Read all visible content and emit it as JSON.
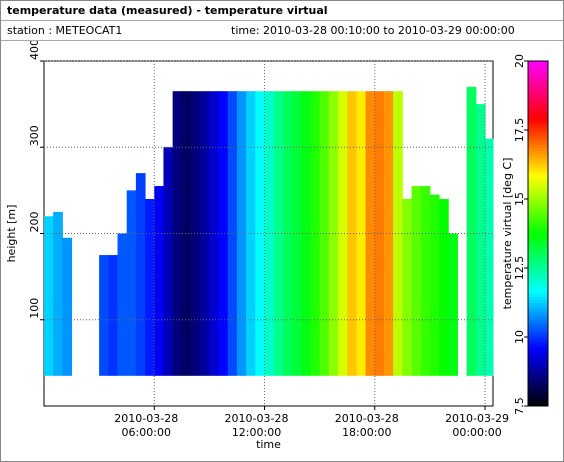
{
  "header": {
    "title": "temperature data (measured) - temperature virtual",
    "station": "station : METEOCAT1",
    "time": "time: 2010-03-28 00:10:00 to 2010-03-29 00:00:00"
  },
  "chart_data": {
    "type": "heatmap",
    "xlabel": "time",
    "ylabel": "height [m]",
    "zlabel": "temperature virtual [deg C]",
    "xlim": [
      "2010-03-28T00:00:00",
      "2010-03-29T00:26:00"
    ],
    "xticks": [
      {
        "value": "2010-03-28T06:00:00",
        "label": [
          "2010-03-28",
          "06:00:00"
        ]
      },
      {
        "value": "2010-03-28T12:00:00",
        "label": [
          "2010-03-28",
          "12:00:00"
        ]
      },
      {
        "value": "2010-03-28T18:00:00",
        "label": [
          "2010-03-28",
          "18:00:00"
        ]
      },
      {
        "value": "2010-03-29T00:00:00",
        "label": [
          "2010-03-29",
          "00:00:00"
        ]
      }
    ],
    "ylim": [
      0,
      400
    ],
    "yticks": [
      100,
      200,
      300,
      400
    ],
    "zlim": [
      7.5,
      20
    ],
    "zticks": [
      7.5,
      10,
      12.5,
      15,
      17.5,
      20
    ],
    "colormap": [
      "#000000",
      "#0000ff",
      "#00ffff",
      "#00ff00",
      "#ffff00",
      "#ff0000",
      "#ff00ff"
    ],
    "grid": true,
    "bottom": 35,
    "x": [
      "2010-03-28T00:00:00",
      "2010-03-28T00:30:00",
      "2010-03-28T01:00:00",
      "2010-03-28T01:30:00",
      "2010-03-28T02:00:00",
      "2010-03-28T02:30:00",
      "2010-03-28T03:00:00",
      "2010-03-28T03:30:00",
      "2010-03-28T04:00:00",
      "2010-03-28T04:30:00",
      "2010-03-28T05:00:00",
      "2010-03-28T05:30:00",
      "2010-03-28T06:00:00",
      "2010-03-28T06:30:00",
      "2010-03-28T07:00:00",
      "2010-03-28T07:30:00",
      "2010-03-28T08:00:00",
      "2010-03-28T08:30:00",
      "2010-03-28T09:00:00",
      "2010-03-28T09:30:00",
      "2010-03-28T10:00:00",
      "2010-03-28T10:30:00",
      "2010-03-28T11:00:00",
      "2010-03-28T11:30:00",
      "2010-03-28T12:00:00",
      "2010-03-28T12:30:00",
      "2010-03-28T13:00:00",
      "2010-03-28T13:30:00",
      "2010-03-28T14:00:00",
      "2010-03-28T14:30:00",
      "2010-03-28T15:00:00",
      "2010-03-28T15:30:00",
      "2010-03-28T16:00:00",
      "2010-03-28T16:30:00",
      "2010-03-28T17:00:00",
      "2010-03-28T17:30:00",
      "2010-03-28T18:00:00",
      "2010-03-28T18:30:00",
      "2010-03-28T19:00:00",
      "2010-03-28T19:30:00",
      "2010-03-28T20:00:00",
      "2010-03-28T20:30:00",
      "2010-03-28T21:00:00",
      "2010-03-28T21:30:00",
      "2010-03-28T22:00:00",
      "2010-03-28T22:30:00",
      "2010-03-28T23:00:00",
      "2010-03-28T23:30:00",
      "2010-03-29T00:00:00"
    ],
    "top": [
      220,
      225,
      195,
      null,
      null,
      null,
      175,
      175,
      200,
      250,
      270,
      240,
      255,
      300,
      365,
      365,
      365,
      365,
      365,
      365,
      365,
      365,
      365,
      365,
      365,
      365,
      365,
      365,
      365,
      365,
      365,
      365,
      365,
      365,
      365,
      365,
      365,
      365,
      365,
      240,
      255,
      255,
      245,
      240,
      200,
      null,
      370,
      350,
      310
    ],
    "values": [
      11.3,
      11.0,
      10.8,
      null,
      null,
      null,
      10.2,
      10.0,
      10.3,
      10.3,
      10.1,
      9.8,
      9.5,
      9.0,
      8.5,
      8.3,
      8.5,
      8.8,
      9.2,
      9.6,
      10.2,
      10.8,
      11.3,
      11.7,
      12.1,
      12.6,
      13.0,
      13.3,
      13.6,
      14.0,
      14.4,
      14.9,
      15.5,
      16.3,
      16.0,
      16.8,
      16.9,
      16.7,
      15.3,
      14.8,
      14.5,
      14.2,
      14.0,
      13.8,
      13.6,
      null,
      13.0,
      12.6,
      12.3
    ]
  }
}
